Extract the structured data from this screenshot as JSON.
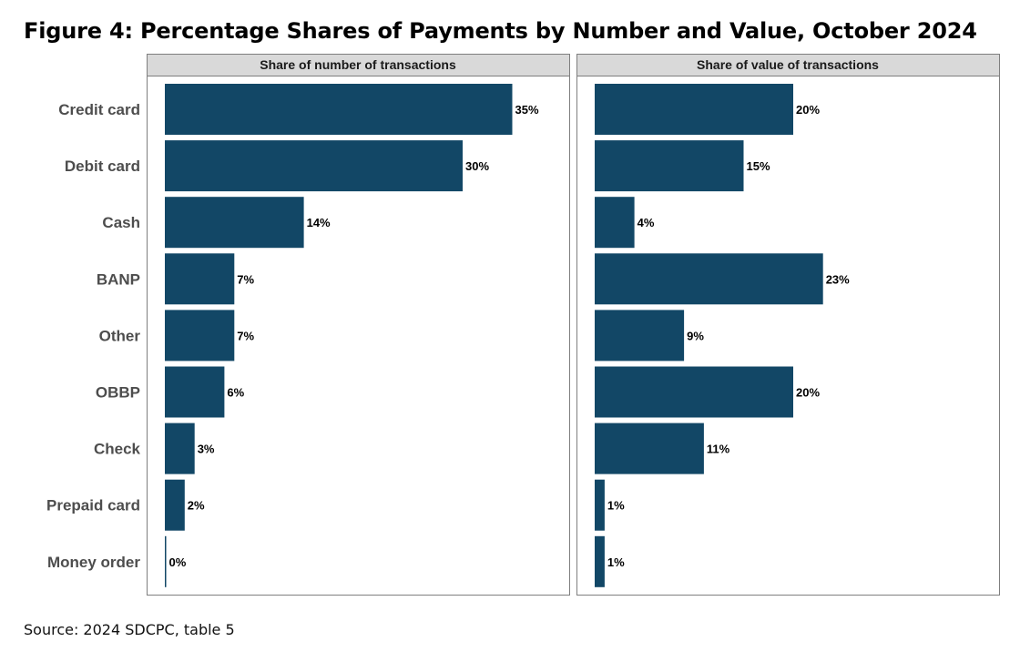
{
  "figure": {
    "title": "Figure 4: Percentage Shares of Payments by Number and Value, October 2024",
    "source": "Source: 2024 SDCPC, table 5"
  },
  "chart_data": {
    "type": "bar",
    "orientation": "horizontal",
    "categories": [
      "Credit card",
      "Debit card",
      "Cash",
      "BANP",
      "Other",
      "OBBP",
      "Check",
      "Prepaid card",
      "Money order"
    ],
    "panels": [
      {
        "name": "Share of number of transactions",
        "values": [
          35,
          30,
          14,
          7,
          7,
          6,
          3,
          2,
          0
        ],
        "labels": [
          "35%",
          "30%",
          "14%",
          "7%",
          "7%",
          "6%",
          "3%",
          "2%",
          "0%"
        ]
      },
      {
        "name": "Share of value of transactions",
        "values": [
          20,
          15,
          4,
          23,
          9,
          20,
          11,
          1,
          1
        ],
        "labels": [
          "20%",
          "15%",
          "4%",
          "23%",
          "9%",
          "20%",
          "11%",
          "1%",
          "1%"
        ]
      }
    ],
    "bar_color": "#124766",
    "panel_header_color": "#d9d9d9",
    "grid": false,
    "legend": "none"
  }
}
